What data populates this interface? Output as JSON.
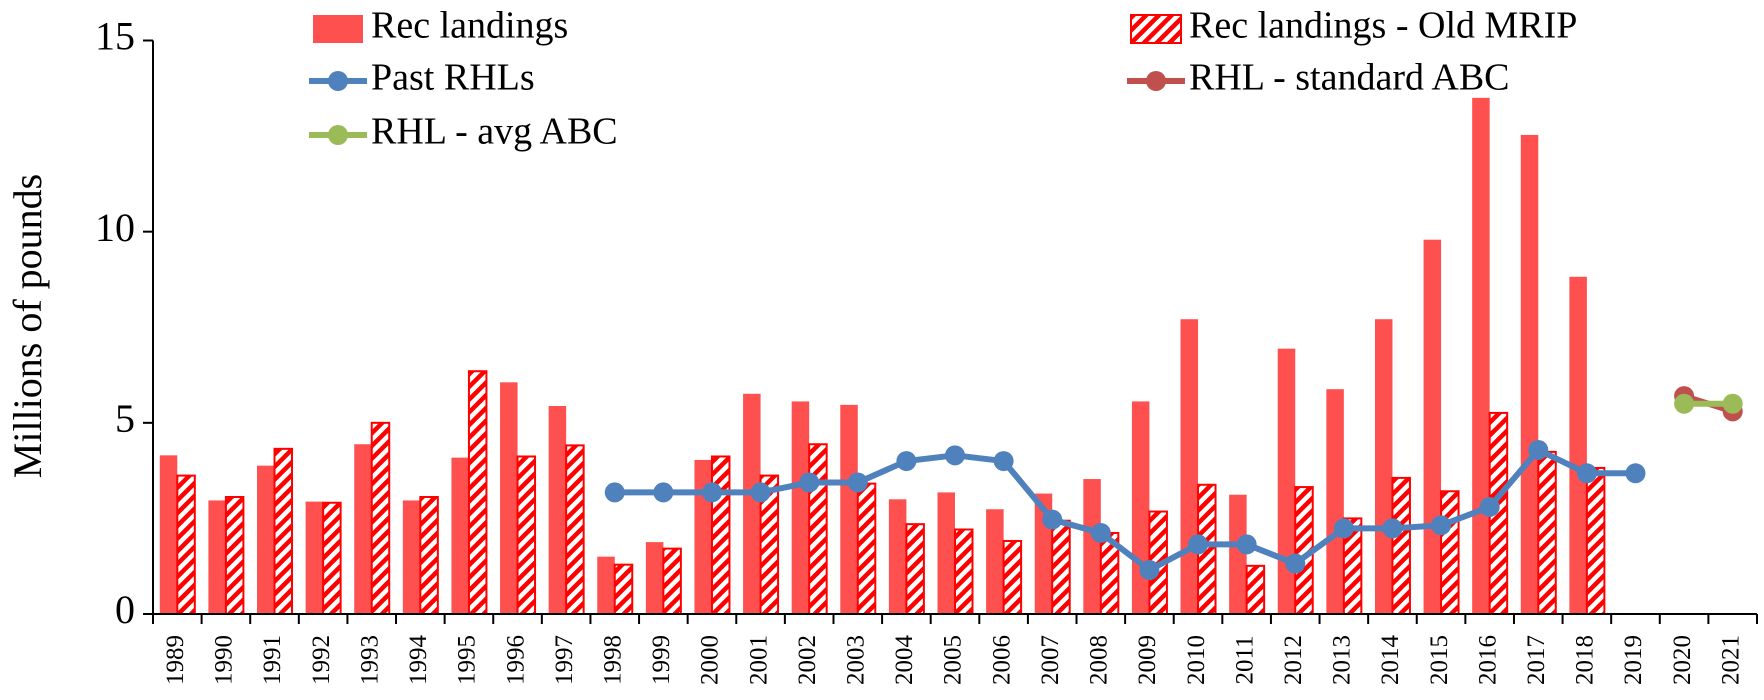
{
  "chart_data": {
    "type": "bar",
    "y_label": "Millions of pounds",
    "categories": [
      "1989",
      "1990",
      "1991",
      "1992",
      "1993",
      "1994",
      "1995",
      "1996",
      "1997",
      "1998",
      "1999",
      "2000",
      "2001",
      "2002",
      "2003",
      "2004",
      "2005",
      "2006",
      "2007",
      "2008",
      "2009",
      "2010",
      "2011",
      "2012",
      "2013",
      "2014",
      "2015",
      "2016",
      "2017",
      "2018",
      "2019",
      "2020",
      "2021"
    ],
    "ylim": [
      0,
      15
    ],
    "yticks": [
      0,
      5,
      10,
      15
    ],
    "grid": false,
    "legend": "top",
    "series": [
      {
        "name": "Rec landings",
        "type": "bar",
        "color": "#ff5050",
        "values": [
          4.15,
          2.97,
          3.88,
          2.94,
          4.44,
          2.97,
          4.09,
          6.06,
          5.44,
          1.5,
          1.88,
          4.03,
          5.76,
          5.56,
          5.47,
          3.0,
          3.18,
          2.74,
          3.15,
          3.53,
          5.56,
          7.71,
          3.12,
          6.94,
          5.88,
          7.71,
          9.79,
          13.5,
          12.53,
          8.82,
          null,
          null,
          null
        ]
      },
      {
        "name": "Rec landings - Old MRIP",
        "type": "bar",
        "pattern": "hatch",
        "color": "#ff0000",
        "values": [
          3.62,
          3.06,
          4.32,
          2.91,
          5.0,
          3.06,
          6.35,
          4.12,
          4.41,
          1.29,
          1.71,
          4.12,
          3.62,
          4.44,
          3.41,
          2.35,
          2.21,
          1.91,
          2.44,
          2.12,
          2.68,
          3.38,
          1.26,
          3.32,
          2.5,
          3.56,
          3.21,
          5.26,
          4.24,
          3.82,
          null,
          null,
          null
        ]
      },
      {
        "name": "Past RHLs",
        "type": "line",
        "color": "#4f81bd",
        "values": [
          null,
          null,
          null,
          null,
          null,
          null,
          null,
          null,
          null,
          3.18,
          3.18,
          3.18,
          3.18,
          3.44,
          3.44,
          4.0,
          4.15,
          4.0,
          2.47,
          2.12,
          1.15,
          1.82,
          1.82,
          1.32,
          2.24,
          2.24,
          2.32,
          2.8,
          4.29,
          3.68,
          3.68,
          null,
          null
        ]
      },
      {
        "name": "RHL - standard ABC",
        "type": "line",
        "color": "#c0504d",
        "values": [
          null,
          null,
          null,
          null,
          null,
          null,
          null,
          null,
          null,
          null,
          null,
          null,
          null,
          null,
          null,
          null,
          null,
          null,
          null,
          null,
          null,
          null,
          null,
          null,
          null,
          null,
          null,
          null,
          null,
          null,
          null,
          5.7,
          5.3
        ]
      },
      {
        "name": "RHL - avg ABC",
        "type": "line",
        "color": "#9bbb59",
        "values": [
          null,
          null,
          null,
          null,
          null,
          null,
          null,
          null,
          null,
          null,
          null,
          null,
          null,
          null,
          null,
          null,
          null,
          null,
          null,
          null,
          null,
          null,
          null,
          null,
          null,
          null,
          null,
          null,
          null,
          null,
          null,
          5.5,
          5.5
        ]
      }
    ]
  }
}
